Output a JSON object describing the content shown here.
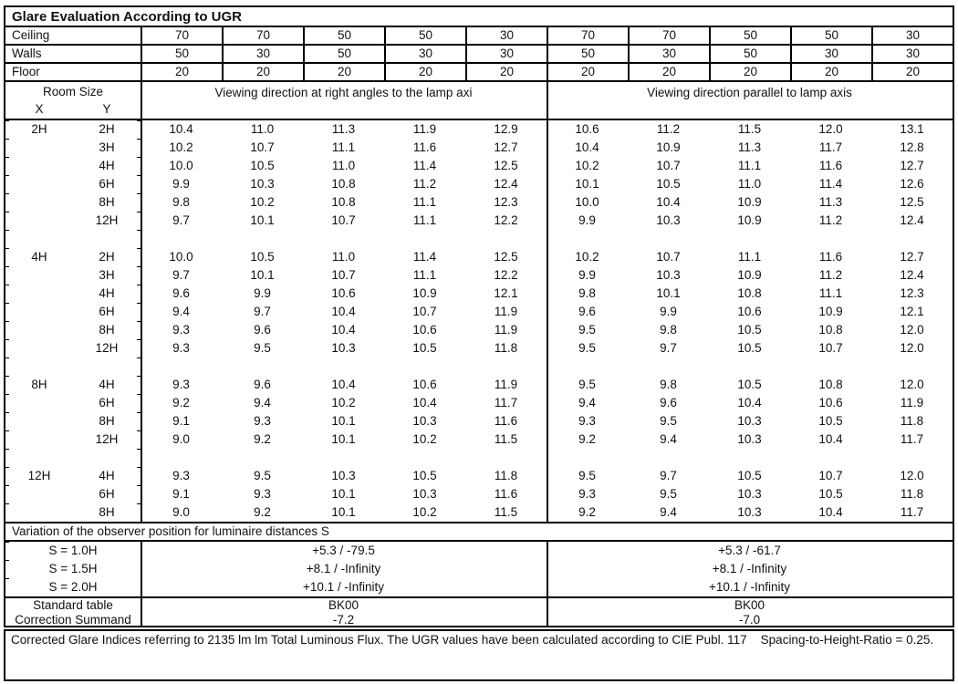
{
  "title": "Glare Evaluation According to UGR",
  "surface_rows": [
    {
      "label": "Ceiling",
      "values": [
        "70",
        "70",
        "50",
        "50",
        "30",
        "70",
        "70",
        "50",
        "50",
        "30"
      ]
    },
    {
      "label": "Walls",
      "values": [
        "50",
        "30",
        "50",
        "30",
        "30",
        "50",
        "30",
        "50",
        "30",
        "30"
      ]
    },
    {
      "label": "Floor",
      "values": [
        "20",
        "20",
        "20",
        "20",
        "20",
        "20",
        "20",
        "20",
        "20",
        "20"
      ]
    }
  ],
  "header": {
    "room_size": "Room Size",
    "x_label": "X",
    "y_label": "Y",
    "left_heading": "Viewing direction at right angles to the lamp axi",
    "right_heading": "Viewing direction parallel to lamp axis"
  },
  "blocks": [
    {
      "x": "2H",
      "rows": [
        {
          "y": "2H",
          "values": [
            "10.4",
            "11.0",
            "11.3",
            "11.9",
            "12.9",
            "10.6",
            "11.2",
            "11.5",
            "12.0",
            "13.1"
          ]
        },
        {
          "y": "3H",
          "values": [
            "10.2",
            "10.7",
            "11.1",
            "11.6",
            "12.7",
            "10.4",
            "10.9",
            "11.3",
            "11.7",
            "12.8"
          ]
        },
        {
          "y": "4H",
          "values": [
            "10.0",
            "10.5",
            "11.0",
            "11.4",
            "12.5",
            "10.2",
            "10.7",
            "11.1",
            "11.6",
            "12.7"
          ]
        },
        {
          "y": "6H",
          "values": [
            "9.9",
            "10.3",
            "10.8",
            "11.2",
            "12.4",
            "10.1",
            "10.5",
            "11.0",
            "11.4",
            "12.6"
          ]
        },
        {
          "y": "8H",
          "values": [
            "9.8",
            "10.2",
            "10.8",
            "11.1",
            "12.3",
            "10.0",
            "10.4",
            "10.9",
            "11.3",
            "12.5"
          ]
        },
        {
          "y": "12H",
          "values": [
            "9.7",
            "10.1",
            "10.7",
            "11.1",
            "12.2",
            "9.9",
            "10.3",
            "10.9",
            "11.2",
            "12.4"
          ]
        }
      ]
    },
    {
      "x": "4H",
      "rows": [
        {
          "y": "2H",
          "values": [
            "10.0",
            "10.5",
            "11.0",
            "11.4",
            "12.5",
            "10.2",
            "10.7",
            "11.1",
            "11.6",
            "12.7"
          ]
        },
        {
          "y": "3H",
          "values": [
            "9.7",
            "10.1",
            "10.7",
            "11.1",
            "12.2",
            "9.9",
            "10.3",
            "10.9",
            "11.2",
            "12.4"
          ]
        },
        {
          "y": "4H",
          "values": [
            "9.6",
            "9.9",
            "10.6",
            "10.9",
            "12.1",
            "9.8",
            "10.1",
            "10.8",
            "11.1",
            "12.3"
          ]
        },
        {
          "y": "6H",
          "values": [
            "9.4",
            "9.7",
            "10.4",
            "10.7",
            "11.9",
            "9.6",
            "9.9",
            "10.6",
            "10.9",
            "12.1"
          ]
        },
        {
          "y": "8H",
          "values": [
            "9.3",
            "9.6",
            "10.4",
            "10.6",
            "11.9",
            "9.5",
            "9.8",
            "10.5",
            "10.8",
            "12.0"
          ]
        },
        {
          "y": "12H",
          "values": [
            "9.3",
            "9.5",
            "10.3",
            "10.5",
            "11.8",
            "9.5",
            "9.7",
            "10.5",
            "10.7",
            "12.0"
          ]
        }
      ]
    },
    {
      "x": "8H",
      "rows": [
        {
          "y": "4H",
          "values": [
            "9.3",
            "9.6",
            "10.4",
            "10.6",
            "11.9",
            "9.5",
            "9.8",
            "10.5",
            "10.8",
            "12.0"
          ]
        },
        {
          "y": "6H",
          "values": [
            "9.2",
            "9.4",
            "10.2",
            "10.4",
            "11.7",
            "9.4",
            "9.6",
            "10.4",
            "10.6",
            "11.9"
          ]
        },
        {
          "y": "8H",
          "values": [
            "9.1",
            "9.3",
            "10.1",
            "10.3",
            "11.6",
            "9.3",
            "9.5",
            "10.3",
            "10.5",
            "11.8"
          ]
        },
        {
          "y": "12H",
          "values": [
            "9.0",
            "9.2",
            "10.1",
            "10.2",
            "11.5",
            "9.2",
            "9.4",
            "10.3",
            "10.4",
            "11.7"
          ]
        }
      ]
    },
    {
      "x": "12H",
      "rows": [
        {
          "y": "4H",
          "values": [
            "9.3",
            "9.5",
            "10.3",
            "10.5",
            "11.8",
            "9.5",
            "9.7",
            "10.5",
            "10.7",
            "12.0"
          ]
        },
        {
          "y": "6H",
          "values": [
            "9.1",
            "9.3",
            "10.1",
            "10.3",
            "11.6",
            "9.3",
            "9.5",
            "10.3",
            "10.5",
            "11.8"
          ]
        },
        {
          "y": "8H",
          "values": [
            "9.0",
            "9.2",
            "10.1",
            "10.2",
            "11.5",
            "9.2",
            "9.4",
            "10.3",
            "10.4",
            "11.7"
          ]
        }
      ]
    }
  ],
  "variation": {
    "heading": "Variation of the observer position for luminaire distances S",
    "rows": [
      {
        "label": "S = 1.0H",
        "left": "+5.3 / -79.5",
        "right": "+5.3 / -61.7"
      },
      {
        "label": "S = 1.5H",
        "left": "+8.1 / -Infinity",
        "right": "+8.1 / -Infinity"
      },
      {
        "label": "S = 2.0H",
        "left": "+10.1 / -Infinity",
        "right": "+10.1 / -Infinity"
      }
    ]
  },
  "summary": {
    "rows": [
      {
        "label": "Standard table",
        "left": "BK00",
        "right": "BK00"
      },
      {
        "label": "Correction Summand",
        "left": "-7.2",
        "right": "-7.0"
      }
    ]
  },
  "footer": "Corrected Glare Indices referring to 2135 lm lm Total Luminous Flux. The UGR values have been calculated according to CIE Publ. 117    Spacing-to-Height-Ratio = 0.25."
}
